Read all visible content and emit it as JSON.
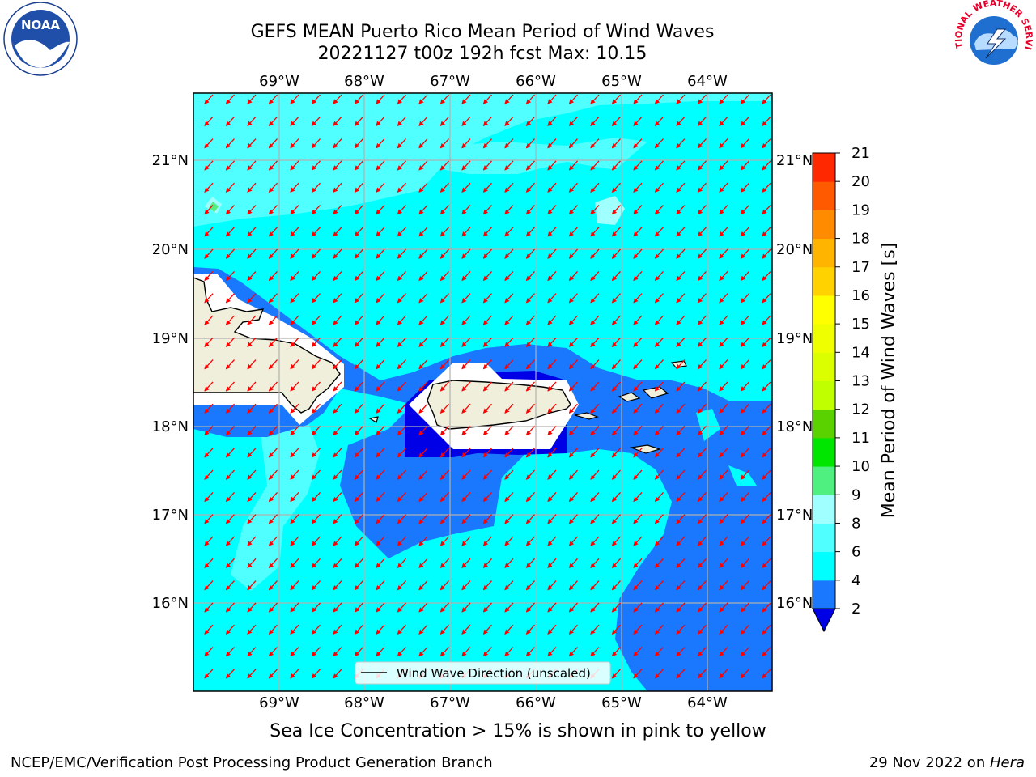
{
  "title": {
    "line1": "GEFS MEAN Puerto Rico Mean Period of Wind Waves",
    "line2": "20221127 t00z 192h fcst   Max: 10.15"
  },
  "map": {
    "lon_labels": [
      "69°W",
      "68°W",
      "67°W",
      "66°W",
      "65°W",
      "64°W"
    ],
    "lat_labels": [
      "21°N",
      "20°N",
      "19°N",
      "18°N",
      "17°N",
      "16°N"
    ],
    "legend_label": "Wind Wave Direction (unscaled)",
    "colors": {
      "ocean_2_4": "#1a78ff",
      "ocean_4_6": "#00ffff",
      "ocean_6_8": "#50ffff",
      "ocean_8_9": "#a0ffff",
      "under_2": "#0000e6",
      "land": "#efefdc",
      "arrow": "#ff0000"
    }
  },
  "colorbar": {
    "label": "Mean Period of Wind Waves [s]",
    "ticks": [
      "2",
      "4",
      "6",
      "8",
      "9",
      "10",
      "11",
      "12",
      "13",
      "14",
      "15",
      "16",
      "17",
      "18",
      "19",
      "20",
      "21"
    ],
    "colors": [
      "#1a78ff",
      "#00ffff",
      "#50ffff",
      "#a0ffff",
      "#50f080",
      "#00e600",
      "#5ad200",
      "#c0ff00",
      "#dcff00",
      "#f0ff00",
      "#ffff00",
      "#ffd200",
      "#ffb400",
      "#ff8c00",
      "#ff5a00",
      "#ff2800",
      "#ff0000"
    ],
    "under_color": "#0000e6"
  },
  "note": "Sea Ice Concentration > 15% is shown in pink to yellow",
  "footer": {
    "left": "NCEP/EMC/Verification Post Processing Product Generation Branch",
    "date": "29 Nov 2022 on ",
    "host": "Hera"
  },
  "logos": {
    "noaa": "NOAA",
    "nws": "NATIONAL WEATHER SERVICE"
  }
}
